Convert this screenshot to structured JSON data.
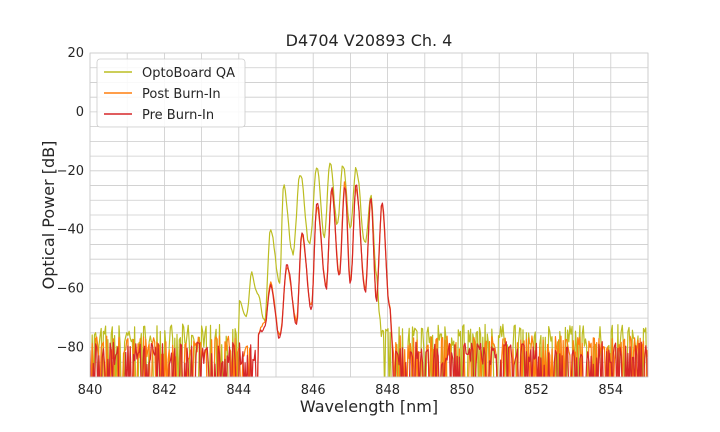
{
  "chart_data": {
    "type": "line",
    "title": "D4704 V20893 Ch. 4",
    "xlabel": "Wavelength [nm]",
    "ylabel": "Optical Power [dB]",
    "xlim": [
      840,
      855
    ],
    "ylim": [
      -90,
      20
    ],
    "x_ticks": [
      840,
      842,
      844,
      846,
      848,
      850,
      852,
      854
    ],
    "x_tick_labels": [
      "840",
      "842",
      "844",
      "846",
      "848",
      "850",
      "852",
      "854"
    ],
    "y_ticks": [
      20,
      0,
      -20,
      -40,
      -60,
      -80
    ],
    "y_tick_labels": [
      "20",
      "0",
      "−20",
      "−40",
      "−60",
      "−80"
    ],
    "grid": true,
    "legend_position": "top-left",
    "series": [
      {
        "name": "OptoBoard QA",
        "color": "#bcbd22",
        "noise_floor": -76,
        "points": [
          [
            844.0,
            -64
          ],
          [
            844.2,
            -70
          ],
          [
            844.35,
            -55
          ],
          [
            844.5,
            -62
          ],
          [
            844.7,
            -71
          ],
          [
            844.85,
            -40
          ],
          [
            845.1,
            -58
          ],
          [
            845.2,
            -25
          ],
          [
            845.45,
            -48
          ],
          [
            845.65,
            -21
          ],
          [
            845.9,
            -45
          ],
          [
            846.1,
            -19
          ],
          [
            846.3,
            -42
          ],
          [
            846.45,
            -17
          ],
          [
            846.65,
            -38
          ],
          [
            846.8,
            -18
          ],
          [
            847.0,
            -40
          ],
          [
            847.15,
            -19
          ],
          [
            847.4,
            -45
          ],
          [
            847.55,
            -28
          ],
          [
            847.7,
            -55
          ],
          [
            847.8,
            -70
          ]
        ]
      },
      {
        "name": "Post Burn-In",
        "color": "#ff7f0e",
        "noise_floor": -80,
        "points": [
          [
            844.5,
            -75
          ],
          [
            844.7,
            -72
          ],
          [
            844.85,
            -58
          ],
          [
            845.1,
            -76
          ],
          [
            845.3,
            -53
          ],
          [
            845.55,
            -71
          ],
          [
            845.7,
            -42
          ],
          [
            845.95,
            -66
          ],
          [
            846.1,
            -32
          ],
          [
            846.35,
            -59
          ],
          [
            846.5,
            -27
          ],
          [
            846.7,
            -55
          ],
          [
            846.85,
            -24
          ],
          [
            847.0,
            -58
          ],
          [
            847.15,
            -26
          ],
          [
            847.4,
            -60
          ],
          [
            847.55,
            -30
          ],
          [
            847.7,
            -63
          ],
          [
            847.85,
            -31
          ],
          [
            848.05,
            -65
          ],
          [
            848.15,
            -80
          ]
        ]
      },
      {
        "name": "Pre Burn-In",
        "color": "#d62728",
        "noise_floor": -82,
        "points": [
          [
            844.5,
            -76
          ],
          [
            844.7,
            -73
          ],
          [
            844.85,
            -59
          ],
          [
            845.1,
            -77
          ],
          [
            845.3,
            -52
          ],
          [
            845.55,
            -72
          ],
          [
            845.7,
            -41
          ],
          [
            845.95,
            -67
          ],
          [
            846.1,
            -31
          ],
          [
            846.35,
            -60
          ],
          [
            846.5,
            -26
          ],
          [
            846.7,
            -56
          ],
          [
            846.85,
            -25
          ],
          [
            847.0,
            -59
          ],
          [
            847.15,
            -25
          ],
          [
            847.4,
            -61
          ],
          [
            847.55,
            -29
          ],
          [
            847.7,
            -64
          ],
          [
            847.85,
            -30
          ],
          [
            848.05,
            -66
          ],
          [
            848.15,
            -82
          ]
        ]
      }
    ]
  }
}
